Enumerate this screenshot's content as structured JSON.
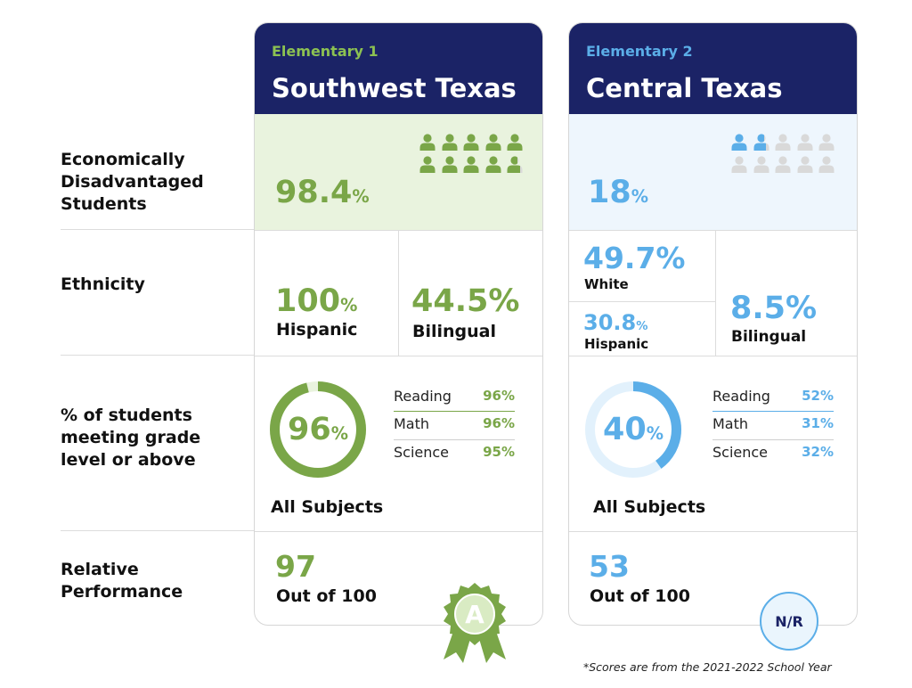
{
  "colors": {
    "navy": "#1b2366",
    "green": "#7aa648",
    "green_light_bg": "#e9f3de",
    "blue": "#5baee8",
    "blue_light_bg": "#eef6fd",
    "person_gray": "#d9d9d9"
  },
  "row_labels": {
    "econ": [
      "Economically",
      "Disadvantaged",
      "Students"
    ],
    "ethnicity": "Ethnicity",
    "grade": [
      "% of students",
      "meeting grade",
      "level or above"
    ],
    "relative": [
      "Relative",
      "Performance"
    ]
  },
  "schools": [
    {
      "tag": "Elementary 1",
      "name": "Southwest Texas",
      "econ": {
        "value": "98.4",
        "unit": "%",
        "people_filled_fraction": 0.984
      },
      "ethnicity": {
        "hispanic": {
          "value": "100",
          "unit": "%",
          "label": "Hispanic"
        },
        "bilingual": {
          "value": "44.5%",
          "label": "Bilingual"
        }
      },
      "grade": {
        "all": {
          "value": "96",
          "unit": "%",
          "label": "All Subjects",
          "fraction": 0.96
        },
        "subjects": [
          {
            "name": "Reading",
            "value": "96%"
          },
          {
            "name": "Math",
            "value": "96%"
          },
          {
            "name": "Science",
            "value": "95%"
          }
        ]
      },
      "relative": {
        "score": "97",
        "out_of": "Out of 100",
        "badge": "A",
        "badge_icon": "award-ribbon-icon"
      }
    },
    {
      "tag": "Elementary 2",
      "name": "Central Texas",
      "econ": {
        "value": "18",
        "unit": "%",
        "people_filled_fraction": 0.18
      },
      "ethnicity": {
        "white": {
          "value": "49.7%",
          "label": "White"
        },
        "hispanic": {
          "value": "30.8",
          "unit": "%",
          "label": "Hispanic"
        },
        "bilingual": {
          "value": "8.5%",
          "label": "Bilingual"
        }
      },
      "grade": {
        "all": {
          "value": "40",
          "unit": "%",
          "label": "All Subjects",
          "fraction": 0.4
        },
        "subjects": [
          {
            "name": "Reading",
            "value": "52%"
          },
          {
            "name": "Math",
            "value": "31%"
          },
          {
            "name": "Science",
            "value": "32%"
          }
        ]
      },
      "relative": {
        "score": "53",
        "out_of": "Out of 100",
        "badge": "N/R"
      }
    }
  ],
  "footnote": "*Scores are from the 2021-2022 School Year"
}
